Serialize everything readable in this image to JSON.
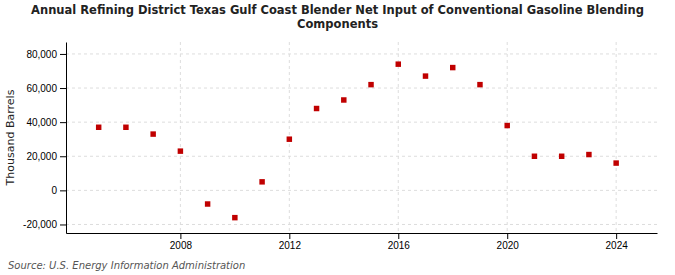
{
  "chart_data": {
    "type": "scatter",
    "title": "Annual Refining District Texas Gulf Coast Blender Net Input of Conventional Gasoline Blending\nComponents",
    "ylabel": "Thousand Barrels",
    "annotations": [
      "Source: U.S. Energy Information Administration"
    ],
    "x": [
      2005,
      2006,
      2007,
      2008,
      2009,
      2010,
      2011,
      2012,
      2013,
      2014,
      2015,
      2016,
      2017,
      2018,
      2019,
      2020,
      2021,
      2022,
      2023,
      2024
    ],
    "values": [
      37000,
      37000,
      33000,
      23000,
      -8000,
      -16000,
      5000,
      30000,
      48000,
      53000,
      62000,
      74000,
      67000,
      72000,
      62000,
      38000,
      20000,
      20000,
      21000,
      16000
    ],
    "color": "#c00000",
    "marker": "square",
    "xlim": [
      2003.8,
      2025.5
    ],
    "ylim": [
      -25000,
      87000
    ],
    "xticks": [
      2008,
      2012,
      2016,
      2020,
      2024
    ],
    "yticks": [
      {
        "value": -20000,
        "label": "-20,000"
      },
      0,
      {
        "value": 20000,
        "label": "20,000"
      },
      {
        "value": 40000,
        "label": "40,000"
      },
      {
        "value": 60000,
        "label": "60,000"
      },
      {
        "value": 80000,
        "label": "80,000"
      }
    ],
    "grid": true
  }
}
